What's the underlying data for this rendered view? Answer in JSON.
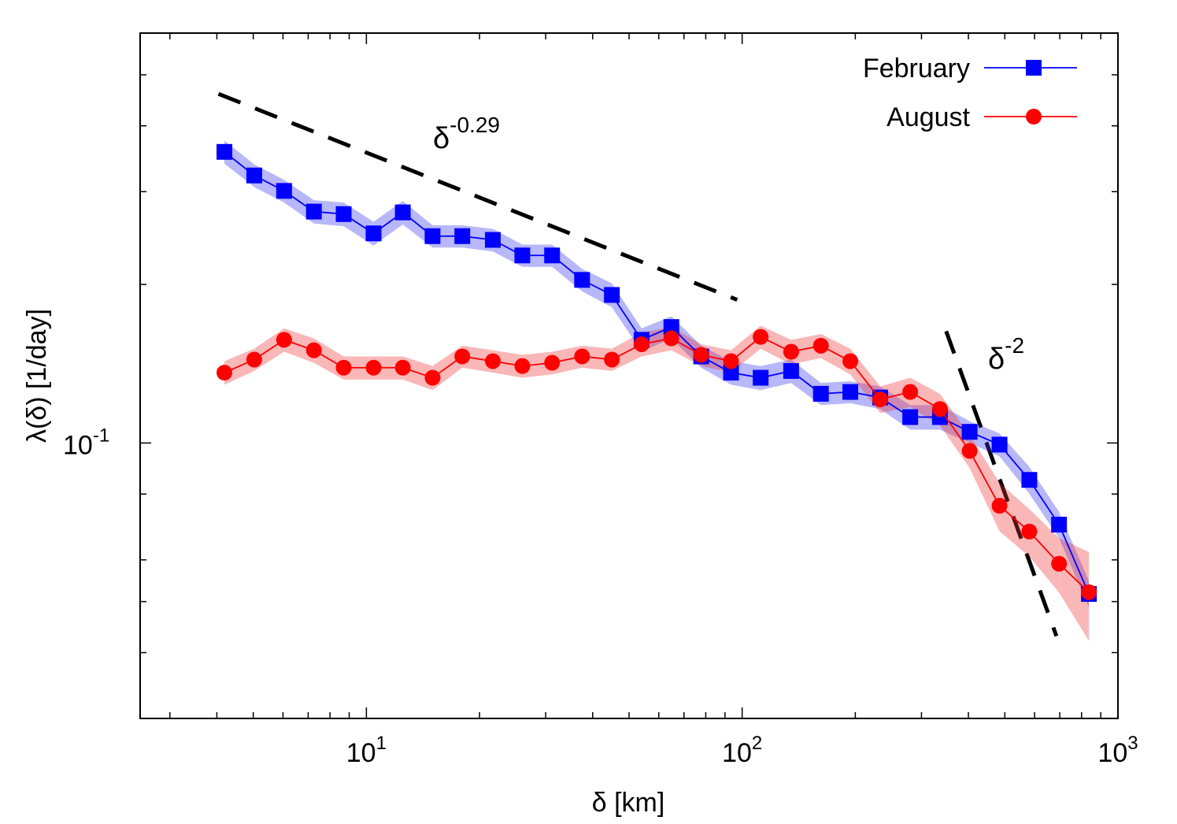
{
  "chart_data": {
    "type": "line",
    "xlabel": "δ [km]",
    "ylabel": "λ(δ) [1/day]",
    "xscale": "log",
    "yscale": "log",
    "xlim": [
      2.5,
      1000
    ],
    "ylim": [
      0.03,
      0.6
    ],
    "xticks": [
      {
        "value": 10,
        "label": "10",
        "exponent": "1"
      },
      {
        "value": 100,
        "label": "10",
        "exponent": "2"
      },
      {
        "value": 1000,
        "label": "10",
        "exponent": "3"
      }
    ],
    "xminorticks": [
      3,
      4,
      5,
      6,
      7,
      8,
      9,
      20,
      30,
      40,
      50,
      60,
      70,
      80,
      90,
      200,
      300,
      400,
      500,
      600,
      700,
      800,
      900
    ],
    "yticks": [
      {
        "value": 0.1,
        "label": "10",
        "exponent": "-1"
      }
    ],
    "yminorticks": [
      0.04,
      0.05,
      0.06,
      0.08,
      0.2,
      0.3,
      0.4,
      0.5
    ],
    "legend": "top-right",
    "x": [
      4.19,
      5.03,
      6.04,
      7.25,
      8.7,
      10.45,
      12.5,
      15.0,
      18.0,
      21.7,
      26.0,
      31.2,
      37.5,
      45.0,
      54.0,
      64.8,
      77.8,
      93.4,
      112,
      135,
      162,
      194,
      233,
      280,
      336,
      403,
      484,
      581,
      697,
      837
    ],
    "series": [
      {
        "name": "February",
        "color": "#0000ff",
        "band_color": "#3333ee",
        "marker": "square",
        "values": [
          0.357,
          0.322,
          0.301,
          0.275,
          0.272,
          0.25,
          0.274,
          0.247,
          0.247,
          0.243,
          0.227,
          0.227,
          0.204,
          0.191,
          0.157,
          0.166,
          0.146,
          0.136,
          0.133,
          0.137,
          0.124,
          0.125,
          0.122,
          0.112,
          0.112,
          0.105,
          0.0993,
          0.0851,
          0.07,
          0.0517
        ],
        "errors": [
          0.018,
          0.016,
          0.015,
          0.014,
          0.014,
          0.013,
          0.014,
          0.012,
          0.012,
          0.012,
          0.011,
          0.011,
          0.01,
          0.01,
          0.008,
          0.008,
          0.007,
          0.007,
          0.007,
          0.007,
          0.006,
          0.006,
          0.006,
          0.006,
          0.006,
          0.005,
          0.005,
          0.005,
          0.004,
          0.003
        ]
      },
      {
        "name": "August",
        "color": "#ff0000",
        "band_color": "#ee3333",
        "marker": "circle",
        "values": [
          0.136,
          0.144,
          0.157,
          0.15,
          0.139,
          0.139,
          0.139,
          0.133,
          0.146,
          0.143,
          0.14,
          0.142,
          0.146,
          0.144,
          0.154,
          0.158,
          0.147,
          0.143,
          0.159,
          0.149,
          0.153,
          0.143,
          0.121,
          0.125,
          0.116,
          0.0966,
          0.076,
          0.0679,
          0.059,
          0.0521
        ],
        "errors": [
          0.007,
          0.007,
          0.008,
          0.008,
          0.007,
          0.007,
          0.007,
          0.007,
          0.007,
          0.007,
          0.007,
          0.007,
          0.007,
          0.007,
          0.008,
          0.008,
          0.007,
          0.007,
          0.008,
          0.008,
          0.008,
          0.008,
          0.007,
          0.008,
          0.008,
          0.007,
          0.008,
          0.007,
          0.007,
          0.01
        ]
      }
    ],
    "reference_lines": [
      {
        "x": [
          4.04,
          97.0
        ],
        "y": [
          0.46,
          0.187
        ]
      },
      {
        "x": [
          349,
          686
        ],
        "y": [
          0.163,
          0.043
        ]
      }
    ],
    "annotations": [
      {
        "text": "δ",
        "exponent": "-0.29"
      },
      {
        "text": "δ",
        "exponent": "-2"
      }
    ]
  }
}
